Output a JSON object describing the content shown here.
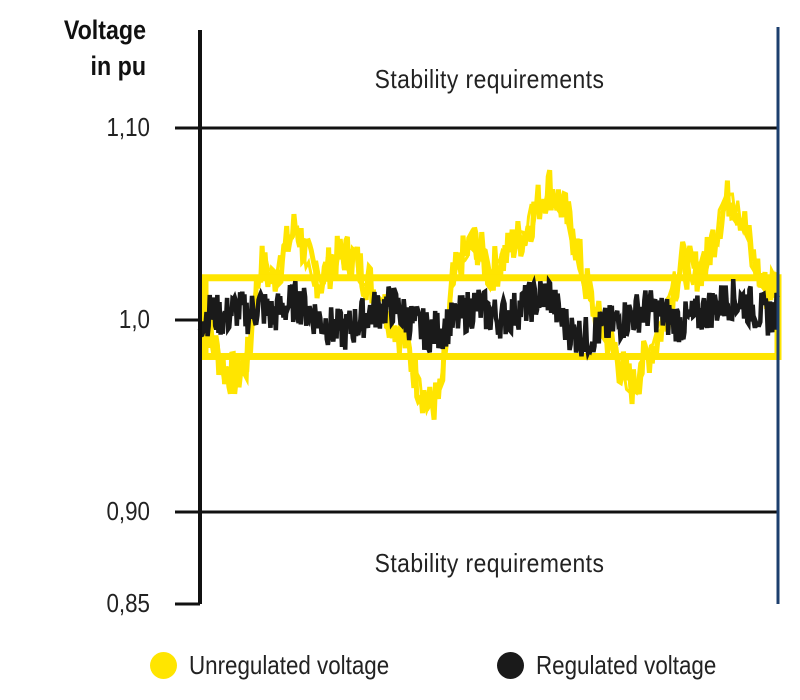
{
  "chart_data": {
    "type": "line",
    "ylabel": "Voltage in pu",
    "ylabel_lines": [
      "Voltage",
      "in pu"
    ],
    "yticks": [
      {
        "value": 1.1,
        "label": "1,10"
      },
      {
        "value": 1.0,
        "label": "1,0"
      },
      {
        "value": 0.9,
        "label": "0,90"
      },
      {
        "value": 0.85,
        "label": "0,85"
      }
    ],
    "ylim": [
      0.85,
      1.15
    ],
    "xlim": [
      0,
      24
    ],
    "limits": {
      "upper": 1.1,
      "lower": 0.9
    },
    "zone_labels": {
      "upper": "Stability requirements",
      "lower": "Stability requirements"
    },
    "band": {
      "min": 0.981,
      "max": 1.022,
      "color": "#FFE500"
    },
    "series": [
      {
        "name": "Unregulated voltage",
        "color": "#FFE500",
        "x": [
          0,
          0.5,
          1,
          1.5,
          2,
          2.5,
          3,
          3.5,
          4,
          4.5,
          5,
          5.5,
          6,
          6.5,
          7,
          7.5,
          8,
          8.5,
          9,
          9.5,
          10,
          10.5,
          11,
          11.5,
          12,
          12.5,
          13,
          13.5,
          14,
          14.5,
          15,
          15.5,
          16,
          16.5,
          17,
          17.5,
          18,
          18.5,
          19,
          19.5,
          20,
          20.5,
          21,
          21.5,
          22,
          22.5,
          23,
          23.5,
          24
        ],
        "values": [
          1.01,
          0.99,
          0.975,
          0.97,
          0.98,
          1.03,
          1.02,
          1.035,
          1.05,
          1.03,
          1.02,
          1.03,
          1.035,
          1.03,
          1.02,
          1.01,
          1.0,
          0.99,
          0.97,
          0.955,
          0.96,
          1.02,
          1.035,
          1.04,
          1.025,
          1.03,
          1.04,
          1.045,
          1.06,
          1.07,
          1.06,
          1.045,
          1.02,
          1.0,
          0.99,
          0.975,
          0.965,
          0.98,
          0.99,
          1.01,
          1.03,
          1.025,
          1.03,
          1.05,
          1.065,
          1.055,
          1.03,
          1.015,
          1.02
        ]
      },
      {
        "name": "Regulated voltage",
        "color": "#1a1a1a",
        "x": [
          0,
          0.5,
          1,
          1.5,
          2,
          2.5,
          3,
          3.5,
          4,
          4.5,
          5,
          5.5,
          6,
          6.5,
          7,
          7.5,
          8,
          8.5,
          9,
          9.5,
          10,
          10.5,
          11,
          11.5,
          12,
          12.5,
          13,
          13.5,
          14,
          14.5,
          15,
          15.5,
          16,
          16.5,
          17,
          17.5,
          18,
          18.5,
          19,
          19.5,
          20,
          20.5,
          21,
          21.5,
          22,
          22.5,
          23,
          23.5,
          24
        ],
        "values": [
          1.0,
          1.004,
          1.001,
          1.006,
          1.003,
          1.008,
          1.002,
          1.007,
          1.01,
          1.005,
          1.0,
          0.996,
          0.994,
          0.998,
          1.004,
          1.006,
          1.008,
          1.002,
          0.997,
          0.994,
          0.995,
          0.999,
          1.004,
          1.008,
          1.003,
          1.001,
          1.004,
          1.008,
          1.011,
          1.014,
          1.0,
          0.993,
          0.991,
          0.994,
          0.997,
          1.0,
          1.003,
          1.006,
          1.004,
          1.001,
          0.998,
          1.001,
          1.005,
          1.008,
          1.011,
          1.01,
          1.006,
          1.002,
          1.004
        ]
      }
    ],
    "legend": {
      "position": "bottom"
    },
    "grid": false
  }
}
